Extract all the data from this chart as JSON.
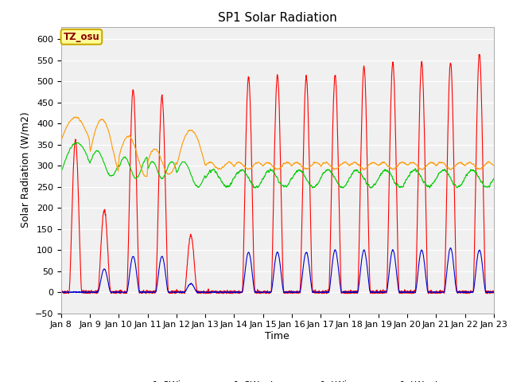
{
  "title": "SP1 Solar Radiation",
  "xlabel": "Time",
  "ylabel": "Solar Radiation (W/m2)",
  "ylim": [
    -50,
    630
  ],
  "series_colors": {
    "sp1_SWin": "#ff0000",
    "sp1_SWout": "#0000cc",
    "sp1_LWin": "#00cc00",
    "sp1_LWout": "#ff9900"
  },
  "legend_label": "TZ_osu",
  "title_fontsize": 11,
  "axis_fontsize": 9,
  "tick_fontsize": 8,
  "x_tick_labels": [
    "Jan 8",
    "Jan 9",
    "Jan 10",
    "Jan 11",
    "Jan 12",
    "Jan 13",
    "Jan 14",
    "Jan 15",
    "Jan 16",
    "Jan 17",
    "Jan 18",
    "Jan 19",
    "Jan 20",
    "Jan 21",
    "Jan 22",
    "Jan 23"
  ],
  "yticks": [
    -50,
    0,
    50,
    100,
    150,
    200,
    250,
    300,
    350,
    400,
    450,
    500,
    550,
    600
  ],
  "bg_color": "#ffffff",
  "plot_bg_color": "#f0f0f0"
}
